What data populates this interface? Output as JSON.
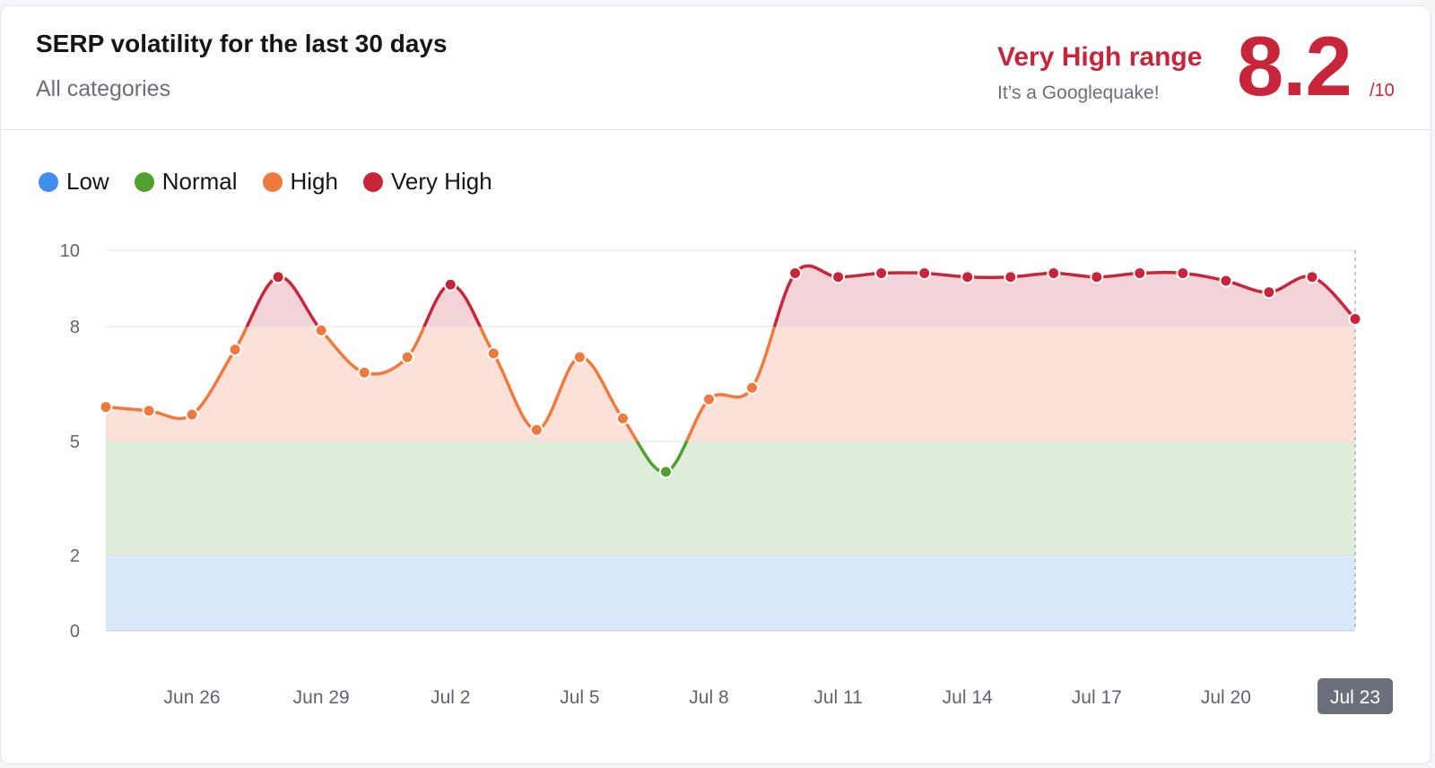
{
  "header": {
    "title": "SERP volatility for the last 30 days",
    "subtitle": "All categories",
    "range_label": "Very High range",
    "range_desc": "It’s a Googlequake!",
    "score": "8.2",
    "score_max": "/10"
  },
  "legend": [
    {
      "label": "Low",
      "color": "#3f8ef0"
    },
    {
      "label": "Normal",
      "color": "#4fa12e"
    },
    {
      "label": "High",
      "color": "#f07a3d"
    },
    {
      "label": "Very High",
      "color": "#c8243a"
    }
  ],
  "colors": {
    "very_high_text": "#c8243a",
    "band_low": "#d9e8fb",
    "band_normal": "#deedd9",
    "band_high": "#fbe1d8",
    "band_very_high": "#f2d3d8"
  },
  "chart_data": {
    "type": "line",
    "title": "SERP volatility for the last 30 days",
    "xlabel": "",
    "ylabel": "",
    "ylim": [
      0,
      10
    ],
    "y_ticks": [
      0,
      2,
      5,
      8,
      10
    ],
    "x_ticks": [
      "Jun 26",
      "Jun 29",
      "Jul 2",
      "Jul 5",
      "Jul 8",
      "Jul 11",
      "Jul 14",
      "Jul 17",
      "Jul 20",
      "Jul 23"
    ],
    "bands": [
      {
        "name": "Low",
        "from": 0,
        "to": 2
      },
      {
        "name": "Normal",
        "from": 2,
        "to": 5
      },
      {
        "name": "High",
        "from": 5,
        "to": 8
      },
      {
        "name": "Very High",
        "from": 8,
        "to": 10
      }
    ],
    "x": [
      "Jun 24",
      "Jun 25",
      "Jun 26",
      "Jun 27",
      "Jun 28",
      "Jun 29",
      "Jun 30",
      "Jul 1",
      "Jul 2",
      "Jul 3",
      "Jul 4",
      "Jul 5",
      "Jul 6",
      "Jul 7",
      "Jul 8",
      "Jul 9",
      "Jul 10",
      "Jul 11",
      "Jul 12",
      "Jul 13",
      "Jul 14",
      "Jul 15",
      "Jul 16",
      "Jul 17",
      "Jul 18",
      "Jul 19",
      "Jul 20",
      "Jul 21",
      "Jul 22",
      "Jul 23"
    ],
    "values": [
      5.9,
      5.8,
      5.7,
      7.4,
      9.3,
      7.9,
      6.8,
      7.2,
      9.1,
      7.3,
      5.3,
      7.2,
      5.6,
      4.2,
      6.1,
      6.4,
      9.4,
      9.3,
      9.4,
      9.4,
      9.3,
      9.3,
      9.4,
      9.3,
      9.4,
      9.4,
      9.2,
      8.9,
      9.3,
      8.2
    ],
    "highlighted_x": "Jul 23"
  }
}
